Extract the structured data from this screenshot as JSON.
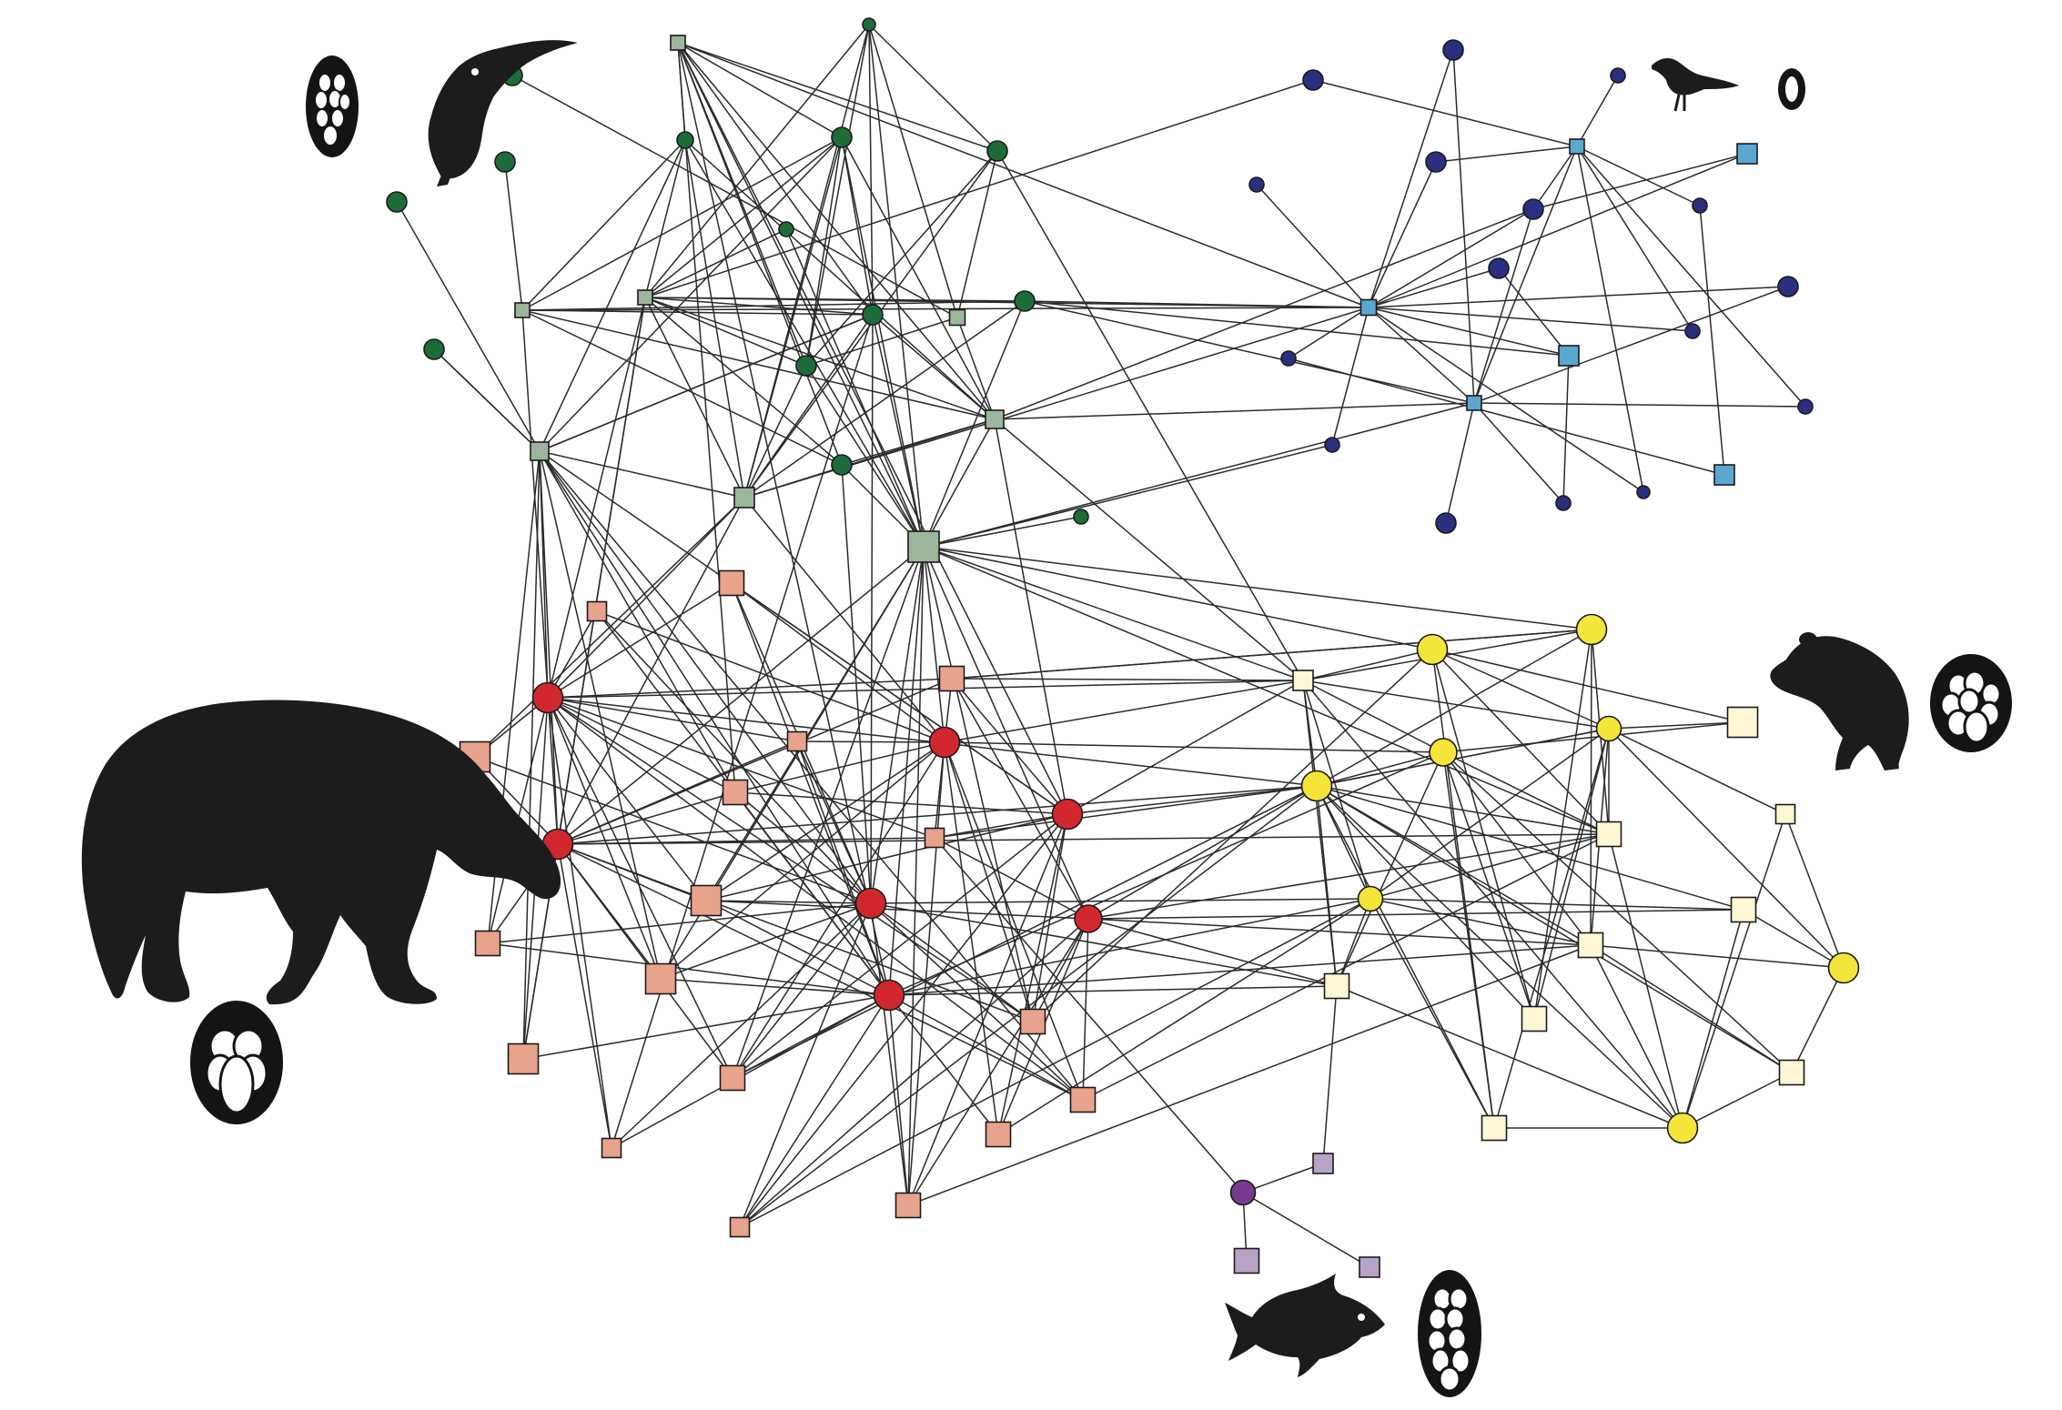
{
  "colors": {
    "birds_plant": "#9bb69b",
    "birds_frugivore": "#1e6b3a",
    "birds2_plant": "#5aa8d0",
    "birds2_frugivore": "#2a2f7f",
    "mammals_plant": "#e8a38d",
    "mammals_frugivore": "#d0282e",
    "rodents_plant": "#fff7d4",
    "rodents_frugivore": "#f5e43a",
    "fish_plant": "#b8a2c8",
    "fish_frugivore": "#7a3a8c",
    "edge": "#2b2b2b",
    "silhouette": "#1c1c1c"
  },
  "modules": [
    {
      "id": "toucan-module",
      "animal": "toucan-silhouette-icon",
      "seeds": "many-small-seeds-icon",
      "plant_color": "birds_plant",
      "frugivore_color": "birds_frugivore"
    },
    {
      "id": "thrush-module",
      "animal": "bird-silhouette-icon",
      "seeds": "single-seed-icon",
      "plant_color": "birds2_plant",
      "frugivore_color": "birds2_frugivore"
    },
    {
      "id": "tapir-module",
      "animal": "tapir-silhouette-icon",
      "seeds": "few-large-seeds-icon",
      "plant_color": "mammals_plant",
      "frugivore_color": "mammals_frugivore"
    },
    {
      "id": "rodent-module",
      "animal": "rodent-silhouette-icon",
      "seeds": "medium-seeds-icon",
      "plant_color": "rodents_plant",
      "frugivore_color": "rodents_frugivore"
    },
    {
      "id": "fish-module",
      "animal": "fish-silhouette-icon",
      "seeds": "many-seeds-icon",
      "plant_color": "fish_plant",
      "frugivore_color": "fish_frugivore"
    }
  ],
  "legend_icons": [
    "toucan-silhouette-icon",
    "bird-silhouette-icon",
    "tapir-silhouette-icon",
    "rodent-silhouette-icon",
    "fish-silhouette-icon",
    "seed-cluster-icon"
  ]
}
